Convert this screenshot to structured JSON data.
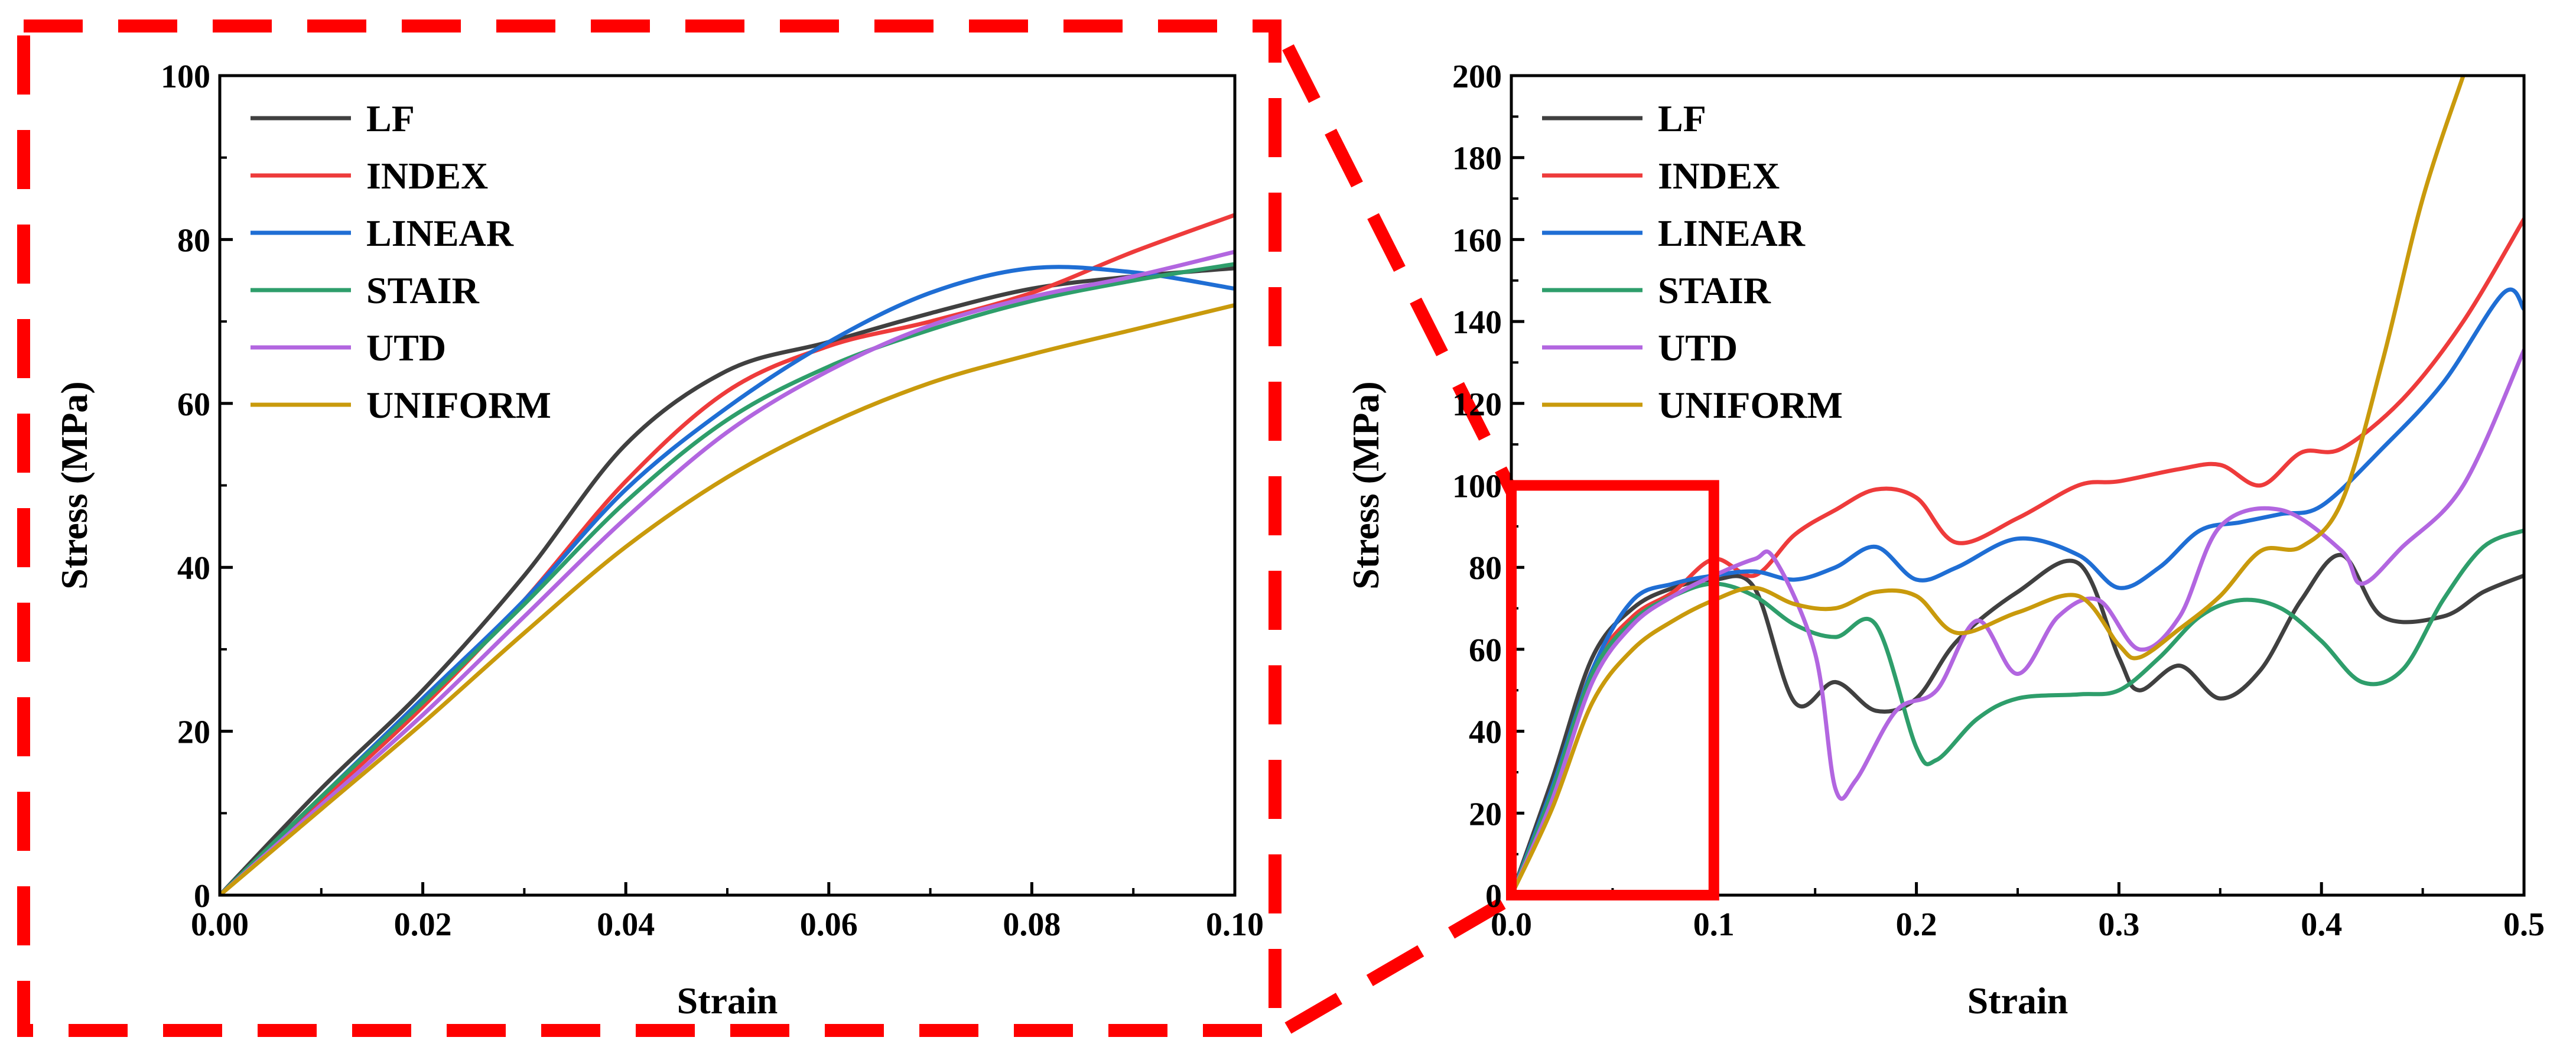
{
  "colors": {
    "highlight": "#ff0000",
    "axis": "#000000",
    "background": "#ffffff"
  },
  "chart_data": [
    {
      "type": "line",
      "title": "",
      "xlabel": "Strain",
      "ylabel": "Stress (MPa)",
      "xlim": [
        0,
        0.1
      ],
      "ylim": [
        0,
        100
      ],
      "xticks": [
        "0.00",
        "0.02",
        "0.04",
        "0.06",
        "0.08",
        "0.10"
      ],
      "yticks": [
        "0",
        "20",
        "40",
        "60",
        "80",
        "100"
      ],
      "legend_position": "top-left",
      "grid": false,
      "series": [
        {
          "name": "LF",
          "color": "#404040",
          "points": [
            [
              0,
              0
            ],
            [
              0.01,
              13
            ],
            [
              0.02,
              25
            ],
            [
              0.03,
              39
            ],
            [
              0.04,
              55
            ],
            [
              0.05,
              64
            ],
            [
              0.06,
              67.5
            ],
            [
              0.07,
              71
            ],
            [
              0.08,
              74
            ],
            [
              0.09,
              75.5
            ],
            [
              0.1,
              76.5
            ]
          ]
        },
        {
          "name": "INDEX",
          "color": "#ee3b3b",
          "points": [
            [
              0,
              0
            ],
            [
              0.01,
              11.5
            ],
            [
              0.02,
              23
            ],
            [
              0.03,
              36
            ],
            [
              0.04,
              50.5
            ],
            [
              0.05,
              61.5
            ],
            [
              0.06,
              67
            ],
            [
              0.07,
              70
            ],
            [
              0.08,
              73.5
            ],
            [
              0.09,
              78.5
            ],
            [
              0.1,
              83
            ]
          ]
        },
        {
          "name": "LINEAR",
          "color": "#1f6ed4",
          "points": [
            [
              0,
              0
            ],
            [
              0.01,
              12
            ],
            [
              0.02,
              24
            ],
            [
              0.03,
              36
            ],
            [
              0.04,
              49.5
            ],
            [
              0.05,
              59.5
            ],
            [
              0.06,
              67.5
            ],
            [
              0.07,
              73.5
            ],
            [
              0.08,
              76.5
            ],
            [
              0.09,
              76
            ],
            [
              0.1,
              74
            ]
          ]
        },
        {
          "name": "STAIR",
          "color": "#2e9e6b",
          "points": [
            [
              0,
              0
            ],
            [
              0.01,
              12
            ],
            [
              0.02,
              23.5
            ],
            [
              0.03,
              35.5
            ],
            [
              0.04,
              48
            ],
            [
              0.05,
              58
            ],
            [
              0.06,
              64.5
            ],
            [
              0.07,
              69
            ],
            [
              0.08,
              72.5
            ],
            [
              0.09,
              75
            ],
            [
              0.1,
              77
            ]
          ]
        },
        {
          "name": "UTD",
          "color": "#b266e0",
          "points": [
            [
              0,
              0
            ],
            [
              0.01,
              11
            ],
            [
              0.02,
              22
            ],
            [
              0.03,
              34
            ],
            [
              0.04,
              46
            ],
            [
              0.05,
              56.5
            ],
            [
              0.06,
              64
            ],
            [
              0.07,
              69.5
            ],
            [
              0.08,
              73
            ],
            [
              0.09,
              75.5
            ],
            [
              0.1,
              78.5
            ]
          ]
        },
        {
          "name": "UNIFORM",
          "color": "#c99a0c",
          "points": [
            [
              0,
              0
            ],
            [
              0.01,
              10.5
            ],
            [
              0.02,
              21
            ],
            [
              0.03,
              32
            ],
            [
              0.04,
              42.5
            ],
            [
              0.05,
              51
            ],
            [
              0.06,
              57.5
            ],
            [
              0.07,
              62.5
            ],
            [
              0.08,
              66
            ],
            [
              0.09,
              69
            ],
            [
              0.1,
              72
            ]
          ]
        }
      ]
    },
    {
      "type": "line",
      "title": "",
      "xlabel": "Strain",
      "ylabel": "Stress (MPa)",
      "xlim": [
        0,
        0.5
      ],
      "ylim": [
        0,
        200
      ],
      "xticks": [
        "0.0",
        "0.1",
        "0.2",
        "0.3",
        "0.4",
        "0.5"
      ],
      "yticks": [
        "0",
        "20",
        "40",
        "60",
        "80",
        "100",
        "120",
        "140",
        "160",
        "180",
        "200"
      ],
      "legend_position": "top-left",
      "grid": false,
      "zoom_box": {
        "xlim": [
          0,
          0.1
        ],
        "ylim": [
          0,
          100
        ]
      },
      "series": [
        {
          "name": "LF",
          "color": "#404040",
          "points": [
            [
              0,
              0
            ],
            [
              0.02,
              28
            ],
            [
              0.04,
              58
            ],
            [
              0.06,
              70
            ],
            [
              0.08,
              75
            ],
            [
              0.1,
              77
            ],
            [
              0.12,
              75
            ],
            [
              0.14,
              47
            ],
            [
              0.16,
              52
            ],
            [
              0.18,
              45
            ],
            [
              0.2,
              48
            ],
            [
              0.22,
              62
            ],
            [
              0.25,
              74
            ],
            [
              0.28,
              81
            ],
            [
              0.3,
              58
            ],
            [
              0.31,
              50
            ],
            [
              0.33,
              56
            ],
            [
              0.35,
              48
            ],
            [
              0.37,
              55
            ],
            [
              0.39,
              72
            ],
            [
              0.41,
              83
            ],
            [
              0.43,
              68
            ],
            [
              0.46,
              68
            ],
            [
              0.48,
              74
            ],
            [
              0.5,
              78
            ]
          ]
        },
        {
          "name": "INDEX",
          "color": "#ee3b3b",
          "points": [
            [
              0,
              0
            ],
            [
              0.02,
              25
            ],
            [
              0.04,
              55
            ],
            [
              0.06,
              68
            ],
            [
              0.08,
              74
            ],
            [
              0.1,
              82
            ],
            [
              0.12,
              78
            ],
            [
              0.14,
              88
            ],
            [
              0.16,
              94
            ],
            [
              0.18,
              99
            ],
            [
              0.2,
              97
            ],
            [
              0.22,
              86
            ],
            [
              0.25,
              92
            ],
            [
              0.28,
              100
            ],
            [
              0.3,
              101
            ],
            [
              0.33,
              104
            ],
            [
              0.35,
              105
            ],
            [
              0.37,
              100
            ],
            [
              0.39,
              108
            ],
            [
              0.41,
              109
            ],
            [
              0.44,
              121
            ],
            [
              0.47,
              140
            ],
            [
              0.5,
              165
            ]
          ]
        },
        {
          "name": "LINEAR",
          "color": "#1f6ed4",
          "points": [
            [
              0,
              0
            ],
            [
              0.02,
              26
            ],
            [
              0.04,
              55
            ],
            [
              0.06,
              72
            ],
            [
              0.08,
              76
            ],
            [
              0.1,
              78
            ],
            [
              0.12,
              79
            ],
            [
              0.14,
              77
            ],
            [
              0.16,
              80
            ],
            [
              0.18,
              85
            ],
            [
              0.2,
              77
            ],
            [
              0.22,
              80
            ],
            [
              0.25,
              87
            ],
            [
              0.28,
              83
            ],
            [
              0.3,
              75
            ],
            [
              0.32,
              80
            ],
            [
              0.34,
              89
            ],
            [
              0.36,
              91
            ],
            [
              0.38,
              93
            ],
            [
              0.4,
              95
            ],
            [
              0.43,
              109
            ],
            [
              0.46,
              125
            ],
            [
              0.49,
              147
            ],
            [
              0.5,
              143
            ]
          ]
        },
        {
          "name": "STAIR",
          "color": "#2e9e6b",
          "points": [
            [
              0,
              0
            ],
            [
              0.02,
              25
            ],
            [
              0.04,
              54
            ],
            [
              0.06,
              67
            ],
            [
              0.08,
              73
            ],
            [
              0.1,
              76
            ],
            [
              0.12,
              73
            ],
            [
              0.14,
              66
            ],
            [
              0.16,
              63
            ],
            [
              0.18,
              66
            ],
            [
              0.2,
              36
            ],
            [
              0.21,
              33
            ],
            [
              0.23,
              43
            ],
            [
              0.25,
              48
            ],
            [
              0.28,
              49
            ],
            [
              0.3,
              50
            ],
            [
              0.32,
              58
            ],
            [
              0.34,
              68
            ],
            [
              0.36,
              72
            ],
            [
              0.38,
              70
            ],
            [
              0.4,
              62
            ],
            [
              0.42,
              52
            ],
            [
              0.44,
              55
            ],
            [
              0.46,
              72
            ],
            [
              0.48,
              85
            ],
            [
              0.5,
              89
            ]
          ]
        },
        {
          "name": "UTD",
          "color": "#b266e0",
          "points": [
            [
              0,
              0
            ],
            [
              0.02,
              23
            ],
            [
              0.04,
              52
            ],
            [
              0.06,
              66
            ],
            [
              0.08,
              73
            ],
            [
              0.1,
              78
            ],
            [
              0.12,
              82
            ],
            [
              0.13,
              82
            ],
            [
              0.15,
              59
            ],
            [
              0.16,
              26
            ],
            [
              0.17,
              28
            ],
            [
              0.19,
              45
            ],
            [
              0.21,
              50
            ],
            [
              0.23,
              67
            ],
            [
              0.25,
              54
            ],
            [
              0.27,
              68
            ],
            [
              0.29,
              72
            ],
            [
              0.31,
              60
            ],
            [
              0.33,
              68
            ],
            [
              0.35,
              90
            ],
            [
              0.38,
              94
            ],
            [
              0.41,
              84
            ],
            [
              0.42,
              76
            ],
            [
              0.44,
              85
            ],
            [
              0.47,
              100
            ],
            [
              0.5,
              133
            ]
          ]
        },
        {
          "name": "UNIFORM",
          "color": "#c99a0c",
          "points": [
            [
              0,
              0
            ],
            [
              0.02,
              21
            ],
            [
              0.04,
              47
            ],
            [
              0.06,
              60
            ],
            [
              0.08,
              67
            ],
            [
              0.1,
              72
            ],
            [
              0.12,
              75
            ],
            [
              0.14,
              71
            ],
            [
              0.16,
              70
            ],
            [
              0.18,
              74
            ],
            [
              0.2,
              73
            ],
            [
              0.22,
              64
            ],
            [
              0.25,
              69
            ],
            [
              0.28,
              73
            ],
            [
              0.3,
              61
            ],
            [
              0.31,
              58
            ],
            [
              0.33,
              65
            ],
            [
              0.35,
              73
            ],
            [
              0.37,
              84
            ],
            [
              0.39,
              85
            ],
            [
              0.41,
              96
            ],
            [
              0.43,
              130
            ],
            [
              0.45,
              170
            ],
            [
              0.47,
              200
            ]
          ]
        }
      ]
    }
  ]
}
